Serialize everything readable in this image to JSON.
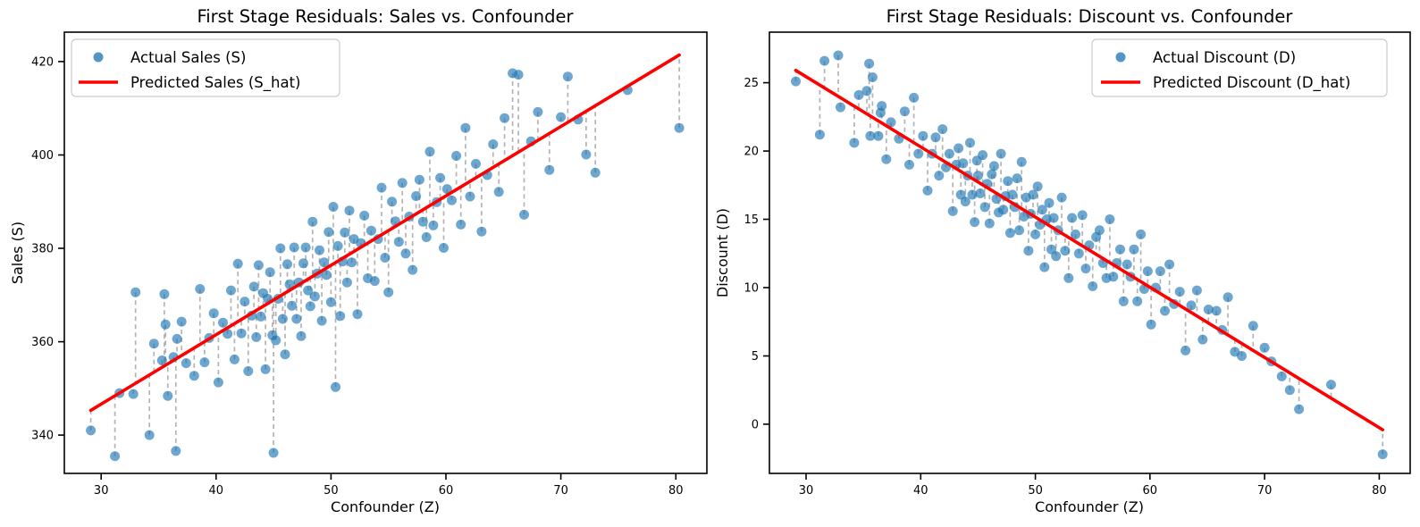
{
  "figure": {
    "background": "#ffffff"
  },
  "chart_data": [
    {
      "type": "scatter",
      "title": "First Stage Residuals: Sales vs. Confounder",
      "xlabel": "Confounder (Z)",
      "ylabel": "Sales (S)",
      "xlim": [
        26.8,
        82.7
      ],
      "ylim": [
        331.8,
        426.3
      ],
      "xticks": [
        30,
        40,
        50,
        60,
        70,
        80
      ],
      "yticks": [
        340,
        360,
        380,
        400,
        420
      ],
      "grid": false,
      "legend_position": "upper-left",
      "legend": {
        "entries": [
          {
            "marker": "dot",
            "label": "Actual Sales (S)",
            "color": "#1f77b4"
          },
          {
            "marker": "line",
            "label": "Predicted Sales (S_hat)",
            "color": "#ff0000"
          }
        ]
      },
      "point_color": "#1f77b4",
      "residual_color": "#a6a6a6",
      "regression_line": {
        "x": [
          29.1,
          80.3
        ],
        "y": [
          345.3,
          421.4
        ],
        "color": "#ff0000"
      },
      "points": [
        [
          29.1,
          341.0
        ],
        [
          31.2,
          335.5
        ],
        [
          31.6,
          349.0
        ],
        [
          32.8,
          348.8
        ],
        [
          33.0,
          370.6
        ],
        [
          34.2,
          340.0
        ],
        [
          34.6,
          359.6
        ],
        [
          35.3,
          356.0
        ],
        [
          35.5,
          370.2
        ],
        [
          35.6,
          363.7
        ],
        [
          35.8,
          348.4
        ],
        [
          36.3,
          356.7
        ],
        [
          36.5,
          336.6
        ],
        [
          36.6,
          360.6
        ],
        [
          37.0,
          364.3
        ],
        [
          37.4,
          355.4
        ],
        [
          38.1,
          352.7
        ],
        [
          38.6,
          371.3
        ],
        [
          39.0,
          355.6
        ],
        [
          39.4,
          360.8
        ],
        [
          39.8,
          366.1
        ],
        [
          40.2,
          351.3
        ],
        [
          40.6,
          364.1
        ],
        [
          41.0,
          361.7
        ],
        [
          41.3,
          371.0
        ],
        [
          41.6,
          356.2
        ],
        [
          41.9,
          376.7
        ],
        [
          42.2,
          361.8
        ],
        [
          42.5,
          368.6
        ],
        [
          42.8,
          353.7
        ],
        [
          43.1,
          365.6
        ],
        [
          43.3,
          371.8
        ],
        [
          43.5,
          361.0
        ],
        [
          43.7,
          376.4
        ],
        [
          43.9,
          365.4
        ],
        [
          44.1,
          370.4
        ],
        [
          44.3,
          354.1
        ],
        [
          44.5,
          369.2
        ],
        [
          44.7,
          374.9
        ],
        [
          44.9,
          361.4
        ],
        [
          45.0,
          336.2
        ],
        [
          45.2,
          360.3
        ],
        [
          45.4,
          369.2
        ],
        [
          45.6,
          380.0
        ],
        [
          45.8,
          364.9
        ],
        [
          46.0,
          357.3
        ],
        [
          46.2,
          376.6
        ],
        [
          46.4,
          372.3
        ],
        [
          46.6,
          367.7
        ],
        [
          46.8,
          380.2
        ],
        [
          47.0,
          364.9
        ],
        [
          47.2,
          372.7
        ],
        [
          47.4,
          361.2
        ],
        [
          47.6,
          376.8
        ],
        [
          47.8,
          380.2
        ],
        [
          48.0,
          371.0
        ],
        [
          48.2,
          367.6
        ],
        [
          48.4,
          385.7
        ],
        [
          48.6,
          369.7
        ],
        [
          48.8,
          374.6
        ],
        [
          49.0,
          379.6
        ],
        [
          49.2,
          364.5
        ],
        [
          49.4,
          377.0
        ],
        [
          49.6,
          374.3
        ],
        [
          49.8,
          383.5
        ],
        [
          50.0,
          368.5
        ],
        [
          50.2,
          388.9
        ],
        [
          50.4,
          350.3
        ],
        [
          50.6,
          380.5
        ],
        [
          50.8,
          365.5
        ],
        [
          51.0,
          377.2
        ],
        [
          51.2,
          383.4
        ],
        [
          51.4,
          372.7
        ],
        [
          51.6,
          388.1
        ],
        [
          51.8,
          377.0
        ],
        [
          52.0,
          382.0
        ],
        [
          52.3,
          365.9
        ],
        [
          52.6,
          381.1
        ],
        [
          52.9,
          387.0
        ],
        [
          53.2,
          373.6
        ],
        [
          53.5,
          383.8
        ],
        [
          53.8,
          373.0
        ],
        [
          54.1,
          382.0
        ],
        [
          54.4,
          393.0
        ],
        [
          54.7,
          378.0
        ],
        [
          55.0,
          370.6
        ],
        [
          55.3,
          390.0
        ],
        [
          55.6,
          385.8
        ],
        [
          55.9,
          381.4
        ],
        [
          56.2,
          394.0
        ],
        [
          56.5,
          378.9
        ],
        [
          56.8,
          386.8
        ],
        [
          57.1,
          375.4
        ],
        [
          57.4,
          391.2
        ],
        [
          57.7,
          394.7
        ],
        [
          58.0,
          385.7
        ],
        [
          58.3,
          382.4
        ],
        [
          58.6,
          400.7
        ],
        [
          58.9,
          384.9
        ],
        [
          59.2,
          389.9
        ],
        [
          59.5,
          395.1
        ],
        [
          59.8,
          380.1
        ],
        [
          60.1,
          392.7
        ],
        [
          60.5,
          390.3
        ],
        [
          60.9,
          399.8
        ],
        [
          61.3,
          385.1
        ],
        [
          61.7,
          405.8
        ],
        [
          62.1,
          391.1
        ],
        [
          62.6,
          398.1
        ],
        [
          63.1,
          383.6
        ],
        [
          63.6,
          395.7
        ],
        [
          64.1,
          402.3
        ],
        [
          64.6,
          392.1
        ],
        [
          65.1,
          407.9
        ],
        [
          65.8,
          417.5
        ],
        [
          66.3,
          417.2
        ],
        [
          66.8,
          387.2
        ],
        [
          67.4,
          402.9
        ],
        [
          68.0,
          409.2
        ],
        [
          69.0,
          396.8
        ],
        [
          70.0,
          408.1
        ],
        [
          70.6,
          416.8
        ],
        [
          71.5,
          407.6
        ],
        [
          72.2,
          400.1
        ],
        [
          73.0,
          396.2
        ],
        [
          75.8,
          413.9
        ],
        [
          80.3,
          405.8
        ]
      ]
    },
    {
      "type": "scatter",
      "title": "First Stage Residuals: Discount vs. Confounder",
      "xlabel": "Confounder (Z)",
      "ylabel": "Discount (D)",
      "xlim": [
        26.8,
        82.7
      ],
      "ylim": [
        -3.6,
        28.7
      ],
      "xticks": [
        30,
        40,
        50,
        60,
        70,
        80
      ],
      "yticks": [
        0,
        5,
        10,
        15,
        20,
        25
      ],
      "grid": false,
      "legend_position": "upper-right",
      "legend": {
        "entries": [
          {
            "marker": "dot",
            "label": "Actual Discount (D)",
            "color": "#1f77b4"
          },
          {
            "marker": "line",
            "label": "Predicted Discount (D_hat)",
            "color": "#ff0000"
          }
        ]
      },
      "point_color": "#1f77b4",
      "residual_color": "#a6a6a6",
      "regression_line": {
        "x": [
          29.1,
          80.3
        ],
        "y": [
          25.9,
          -0.4
        ],
        "color": "#ff0000"
      },
      "points": [
        [
          29.1,
          25.1
        ],
        [
          31.2,
          21.2
        ],
        [
          31.6,
          26.6
        ],
        [
          32.8,
          27.0
        ],
        [
          33.0,
          23.2
        ],
        [
          34.2,
          20.6
        ],
        [
          34.6,
          24.1
        ],
        [
          35.3,
          24.4
        ],
        [
          35.5,
          26.4
        ],
        [
          35.6,
          21.1
        ],
        [
          35.8,
          25.4
        ],
        [
          36.3,
          21.1
        ],
        [
          36.5,
          22.8
        ],
        [
          36.6,
          23.3
        ],
        [
          37.0,
          19.4
        ],
        [
          37.4,
          22.1
        ],
        [
          38.1,
          20.9
        ],
        [
          38.6,
          22.9
        ],
        [
          39.0,
          19.0
        ],
        [
          39.4,
          23.9
        ],
        [
          39.8,
          19.8
        ],
        [
          40.2,
          21.1
        ],
        [
          40.6,
          17.1
        ],
        [
          41.0,
          19.8
        ],
        [
          41.3,
          21.0
        ],
        [
          41.6,
          18.2
        ],
        [
          41.9,
          21.6
        ],
        [
          42.2,
          18.8
        ],
        [
          42.5,
          19.8
        ],
        [
          42.8,
          15.6
        ],
        [
          43.1,
          19.0
        ],
        [
          43.3,
          20.2
        ],
        [
          43.5,
          16.8
        ],
        [
          43.7,
          19.1
        ],
        [
          43.9,
          16.3
        ],
        [
          44.1,
          18.2
        ],
        [
          44.3,
          20.6
        ],
        [
          44.5,
          16.8
        ],
        [
          44.7,
          14.8
        ],
        [
          44.9,
          19.3
        ],
        [
          45.0,
          18.2
        ],
        [
          45.2,
          16.9
        ],
        [
          45.4,
          19.7
        ],
        [
          45.6,
          15.9
        ],
        [
          45.8,
          17.6
        ],
        [
          46.0,
          14.7
        ],
        [
          46.2,
          18.3
        ],
        [
          46.4,
          18.9
        ],
        [
          46.6,
          16.5
        ],
        [
          46.8,
          15.5
        ],
        [
          47.0,
          19.8
        ],
        [
          47.2,
          15.7
        ],
        [
          47.4,
          16.7
        ],
        [
          47.6,
          17.8
        ],
        [
          47.8,
          14.0
        ],
        [
          48.0,
          16.8
        ],
        [
          48.2,
          15.9
        ],
        [
          48.4,
          18.0
        ],
        [
          48.6,
          14.2
        ],
        [
          48.8,
          19.2
        ],
        [
          49.0,
          15.2
        ],
        [
          49.2,
          16.6
        ],
        [
          49.4,
          12.7
        ],
        [
          49.6,
          15.4
        ],
        [
          49.8,
          16.8
        ],
        [
          50.0,
          13.9
        ],
        [
          50.2,
          17.4
        ],
        [
          50.4,
          14.6
        ],
        [
          50.6,
          15.7
        ],
        [
          50.8,
          11.5
        ],
        [
          51.0,
          15.0
        ],
        [
          51.2,
          16.2
        ],
        [
          51.4,
          12.8
        ],
        [
          51.6,
          15.1
        ],
        [
          51.8,
          12.3
        ],
        [
          52.0,
          14.2
        ],
        [
          52.3,
          16.6
        ],
        [
          52.6,
          12.7
        ],
        [
          52.9,
          10.7
        ],
        [
          53.2,
          15.1
        ],
        [
          53.5,
          13.9
        ],
        [
          53.8,
          12.5
        ],
        [
          54.1,
          15.3
        ],
        [
          54.4,
          11.4
        ],
        [
          54.7,
          13.1
        ],
        [
          55.0,
          10.1
        ],
        [
          55.3,
          13.7
        ],
        [
          55.6,
          14.2
        ],
        [
          55.9,
          11.8
        ],
        [
          56.2,
          10.7
        ],
        [
          56.5,
          15.0
        ],
        [
          56.8,
          10.8
        ],
        [
          57.1,
          11.8
        ],
        [
          57.4,
          12.8
        ],
        [
          57.7,
          9.0
        ],
        [
          58.0,
          11.7
        ],
        [
          58.3,
          10.8
        ],
        [
          58.6,
          12.8
        ],
        [
          58.9,
          9.0
        ],
        [
          59.2,
          13.9
        ],
        [
          59.5,
          9.9
        ],
        [
          59.8,
          11.2
        ],
        [
          60.1,
          7.3
        ],
        [
          60.5,
          10.0
        ],
        [
          60.9,
          11.2
        ],
        [
          61.3,
          8.3
        ],
        [
          61.7,
          11.7
        ],
        [
          62.1,
          8.8
        ],
        [
          62.6,
          9.7
        ],
        [
          63.1,
          5.4
        ],
        [
          63.6,
          8.7
        ],
        [
          64.1,
          9.8
        ],
        [
          64.6,
          6.2
        ],
        [
          65.1,
          8.4
        ],
        [
          65.8,
          8.3
        ],
        [
          66.3,
          6.9
        ],
        [
          66.8,
          9.3
        ],
        [
          67.4,
          5.3
        ],
        [
          68.0,
          5.0
        ],
        [
          69.0,
          7.2
        ],
        [
          70.0,
          5.6
        ],
        [
          70.6,
          4.6
        ],
        [
          71.5,
          3.5
        ],
        [
          72.2,
          2.5
        ],
        [
          73.0,
          1.1
        ],
        [
          75.8,
          2.9
        ],
        [
          80.3,
          -2.2
        ]
      ]
    }
  ]
}
